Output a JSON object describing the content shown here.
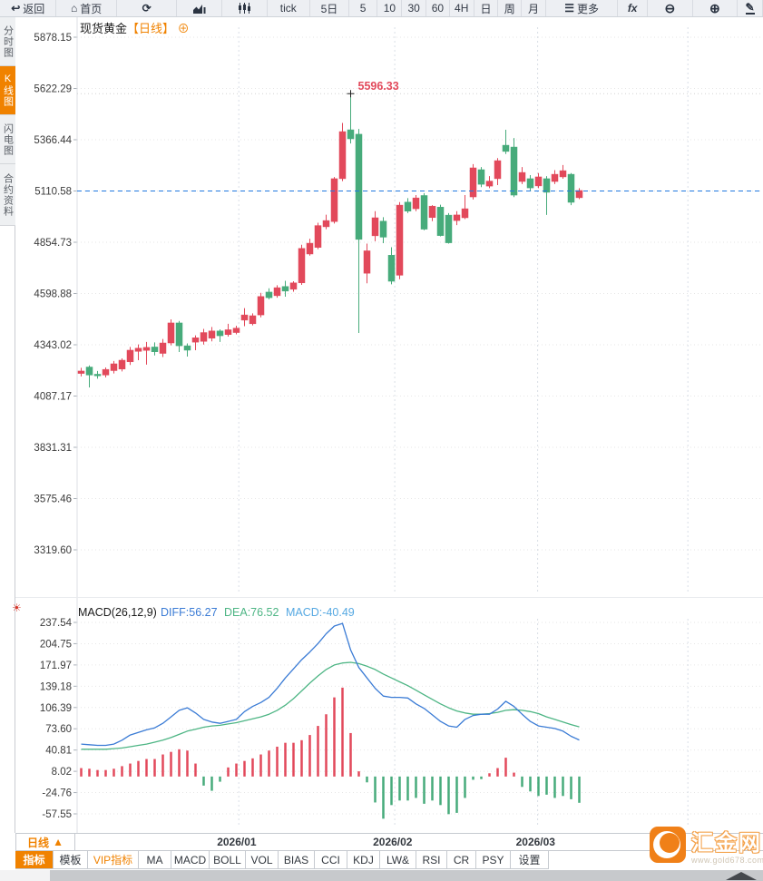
{
  "toolbar": {
    "items": [
      {
        "name": "back",
        "icon": "back-arrow",
        "label": "返回"
      },
      {
        "name": "home",
        "icon": "home",
        "label": "首页"
      },
      {
        "name": "refresh",
        "icon": "refresh",
        "label": ""
      },
      {
        "name": "trend-chart",
        "icon": "trend-chart",
        "label": ""
      },
      {
        "name": "candle-chart",
        "icon": "candle-chart",
        "label": ""
      },
      {
        "name": "tick",
        "icon": "",
        "label": "tick"
      },
      {
        "name": "period-5d",
        "icon": "",
        "label": "5日"
      },
      {
        "name": "period-5",
        "icon": "",
        "label": "5"
      },
      {
        "name": "period-10",
        "icon": "",
        "label": "10"
      },
      {
        "name": "period-30",
        "icon": "",
        "label": "30"
      },
      {
        "name": "period-60",
        "icon": "",
        "label": "60"
      },
      {
        "name": "period-4h",
        "icon": "",
        "label": "4H"
      },
      {
        "name": "period-day",
        "icon": "",
        "label": "日"
      },
      {
        "name": "period-week",
        "icon": "",
        "label": "周"
      },
      {
        "name": "period-month",
        "icon": "",
        "label": "月"
      },
      {
        "name": "more",
        "icon": "menu",
        "label": "更多"
      },
      {
        "name": "fx",
        "icon": "",
        "label": "fx"
      },
      {
        "name": "zoom-out",
        "icon": "zoom-out",
        "label": ""
      },
      {
        "name": "zoom-in",
        "icon": "zoom-in",
        "label": ""
      },
      {
        "name": "draw",
        "icon": "pencil",
        "label": ""
      }
    ]
  },
  "sidebar": {
    "items": [
      {
        "label": "分时图",
        "active": false
      },
      {
        "label": "K线图",
        "active": true
      },
      {
        "label": "闪电图",
        "active": false
      },
      {
        "label": "合约资料",
        "active": false
      }
    ]
  },
  "chart": {
    "title": "现货黄金",
    "period_tag": "【日线】",
    "add_icon": "⊕"
  },
  "icons": {
    "sun": "☀"
  },
  "chart_data": {
    "type": "candlestick",
    "instrument": "现货黄金",
    "period": "日线",
    "price_axis_ticks": [
      5878.15,
      5622.29,
      5366.44,
      5110.58,
      4854.73,
      4598.88,
      4343.02,
      4087.17,
      3831.31,
      3575.46,
      3319.6
    ],
    "current_price": 5110.58,
    "high_marker": {
      "value": 5596.33,
      "label": "5596.33",
      "candle_index": 33
    },
    "x_axis": [
      {
        "label": "2026/01",
        "candle_index": 19.3
      },
      {
        "label": "2026/02",
        "candle_index": 38.4
      },
      {
        "label": "2026/03",
        "candle_index": 55.9
      }
    ],
    "extra_month_gridline_index": 74.3,
    "candles_ohlc": [
      [
        4200,
        4228,
        4185,
        4212
      ],
      [
        4232,
        4240,
        4130,
        4192
      ],
      [
        4196,
        4212,
        4174,
        4188
      ],
      [
        4192,
        4230,
        4180,
        4220
      ],
      [
        4214,
        4262,
        4200,
        4248
      ],
      [
        4222,
        4275,
        4210,
        4266
      ],
      [
        4258,
        4332,
        4242,
        4316
      ],
      [
        4310,
        4345,
        4266,
        4326
      ],
      [
        4315,
        4357,
        4244,
        4330
      ],
      [
        4332,
        4355,
        4290,
        4308
      ],
      [
        4300,
        4372,
        4282,
        4352
      ],
      [
        4352,
        4470,
        4340,
        4452
      ],
      [
        4452,
        4462,
        4307,
        4338
      ],
      [
        4338,
        4350,
        4284,
        4316
      ],
      [
        4356,
        4390,
        4316,
        4378
      ],
      [
        4360,
        4422,
        4344,
        4404
      ],
      [
        4376,
        4432,
        4360,
        4412
      ],
      [
        4412,
        4420,
        4357,
        4388
      ],
      [
        4394,
        4448,
        4384,
        4418
      ],
      [
        4404,
        4438,
        4395,
        4426
      ],
      [
        4466,
        4526,
        4436,
        4492
      ],
      [
        4448,
        4500,
        4440,
        4488
      ],
      [
        4492,
        4602,
        4480,
        4584
      ],
      [
        4606,
        4625,
        4570,
        4578
      ],
      [
        4588,
        4640,
        4578,
        4628
      ],
      [
        4634,
        4662,
        4583,
        4611
      ],
      [
        4620,
        4660,
        4608,
        4652
      ],
      [
        4652,
        4842,
        4642,
        4824
      ],
      [
        4796,
        4872,
        4788,
        4850
      ],
      [
        4829,
        4952,
        4820,
        4938
      ],
      [
        4932,
        4992,
        4920,
        4963
      ],
      [
        4958,
        5180,
        4948,
        5172
      ],
      [
        5172,
        5450,
        5160,
        5407
      ],
      [
        5416,
        5596.33,
        5348,
        5371
      ],
      [
        5394,
        5420,
        4402,
        4869
      ],
      [
        4700,
        4848,
        4650,
        4812
      ],
      [
        4887,
        5010,
        4860,
        4977
      ],
      [
        4960,
        4980,
        4850,
        4880
      ],
      [
        4790,
        4830,
        4645,
        4660
      ],
      [
        4690,
        5055,
        4670,
        5040
      ],
      [
        5055,
        5075,
        5000,
        5010
      ],
      [
        5022,
        5090,
        5010,
        5076
      ],
      [
        5088,
        5100,
        4915,
        4920
      ],
      [
        4978,
        5040,
        4960,
        5035
      ],
      [
        5030,
        5042,
        4884,
        4888
      ],
      [
        4990,
        5000,
        4848,
        4852
      ],
      [
        4963,
        5010,
        4940,
        4991
      ],
      [
        4977,
        5090,
        4970,
        5022
      ],
      [
        5081,
        5245,
        5068,
        5226
      ],
      [
        5217,
        5230,
        5130,
        5144
      ],
      [
        5135,
        5185,
        5125,
        5160
      ],
      [
        5172,
        5275,
        5140,
        5262
      ],
      [
        5339,
        5416,
        5295,
        5308
      ],
      [
        5330,
        5375,
        5080,
        5090
      ],
      [
        5158,
        5230,
        5145,
        5203
      ],
      [
        5172,
        5190,
        5110,
        5126
      ],
      [
        5136,
        5200,
        5125,
        5181
      ],
      [
        5172,
        5185,
        4991,
        5104
      ],
      [
        5158,
        5215,
        5145,
        5194
      ],
      [
        5181,
        5240,
        5172,
        5212
      ],
      [
        5194,
        5200,
        5040,
        5054
      ],
      [
        5077,
        5125,
        5070,
        5113
      ]
    ],
    "macd": {
      "title": "MACD(26,12,9)",
      "diff_label": "DIFF:56.27",
      "dea_label": "DEA:76.52",
      "macd_label": "MACD:-40.49",
      "diff_value": 56.27,
      "dea_value": 76.52,
      "macd_value": -40.49,
      "axis_ticks": [
        237.54,
        204.75,
        171.97,
        139.18,
        106.39,
        73.6,
        40.81,
        8.02,
        -24.76,
        -57.55
      ],
      "diff_series": [
        50,
        49,
        48,
        48,
        50,
        56,
        64,
        68,
        72,
        75,
        82,
        92,
        102,
        106,
        98,
        88,
        84,
        82,
        85,
        88,
        100,
        108,
        114,
        122,
        136,
        152,
        166,
        180,
        192,
        205,
        220,
        232,
        236,
        195,
        168,
        152,
        136,
        124,
        122,
        122,
        121,
        112,
        105,
        95,
        85,
        78,
        76,
        88,
        94,
        96,
        96,
        104,
        116,
        108,
        96,
        85,
        78,
        76,
        74,
        70,
        62,
        56.27
      ],
      "dea_series": [
        42,
        42,
        42,
        42,
        43,
        44,
        46,
        48,
        50,
        53,
        56,
        60,
        65,
        70,
        73,
        76,
        78,
        79,
        81,
        83,
        86,
        89,
        92,
        96,
        102,
        110,
        120,
        132,
        144,
        155,
        165,
        172,
        175,
        176,
        174,
        170,
        165,
        158,
        152,
        146,
        140,
        133,
        126,
        119,
        112,
        106,
        101,
        98,
        96,
        96,
        97,
        99,
        102,
        103,
        102,
        100,
        97,
        92,
        88,
        84,
        80,
        76.52
      ],
      "hist_series": [
        13,
        12,
        10,
        10,
        12,
        16,
        20,
        24,
        27,
        27,
        34,
        38,
        42,
        40,
        20,
        -14,
        -22,
        -8,
        14,
        20,
        24,
        28,
        34,
        40,
        46,
        52,
        52,
        56,
        64,
        78,
        96,
        122,
        137,
        67,
        8,
        -9,
        -40,
        -65,
        -44,
        -37,
        -37,
        -33,
        -42,
        -37,
        -44,
        -58,
        -56,
        -33,
        -5,
        -4,
        5,
        13,
        29,
        6,
        -16,
        -23,
        -30,
        -28,
        -33,
        -30,
        -35,
        -40.49
      ]
    }
  },
  "bottom": {
    "period_selector": {
      "label": "日线",
      "arrow": "▲"
    },
    "tabs": [
      {
        "label": "指标",
        "state": "active"
      },
      {
        "label": "模板",
        "state": "normal"
      },
      {
        "label": "VIP指标",
        "state": "vip"
      },
      {
        "label": "MA",
        "state": "normal"
      },
      {
        "label": "MACD",
        "state": "normal"
      },
      {
        "label": "BOLL",
        "state": "normal"
      },
      {
        "label": "VOL",
        "state": "normal"
      },
      {
        "label": "BIAS",
        "state": "normal"
      },
      {
        "label": "CCI",
        "state": "normal"
      },
      {
        "label": "KDJ",
        "state": "normal"
      },
      {
        "label": "LW&",
        "state": "normal"
      },
      {
        "label": "RSI",
        "state": "normal"
      },
      {
        "label": "CR",
        "state": "normal"
      },
      {
        "label": "PSY",
        "state": "normal"
      },
      {
        "label": "设置",
        "state": "normal"
      }
    ]
  },
  "logo": {
    "brand": "汇金网",
    "url": "www.gold678.com"
  },
  "colors": {
    "up": "#e2495b",
    "down": "#47ab7b",
    "diff_line": "#3a7bd5",
    "dea_line": "#4db584",
    "macd_label_blue": "#55a8e2",
    "current_price_line": "#2079e0",
    "accent_orange": "#f08200",
    "annotation": "#e2495b",
    "axis_text": "#3a3a3a",
    "grid": "#e6e6e6",
    "month_grid": "#d9dee6"
  }
}
